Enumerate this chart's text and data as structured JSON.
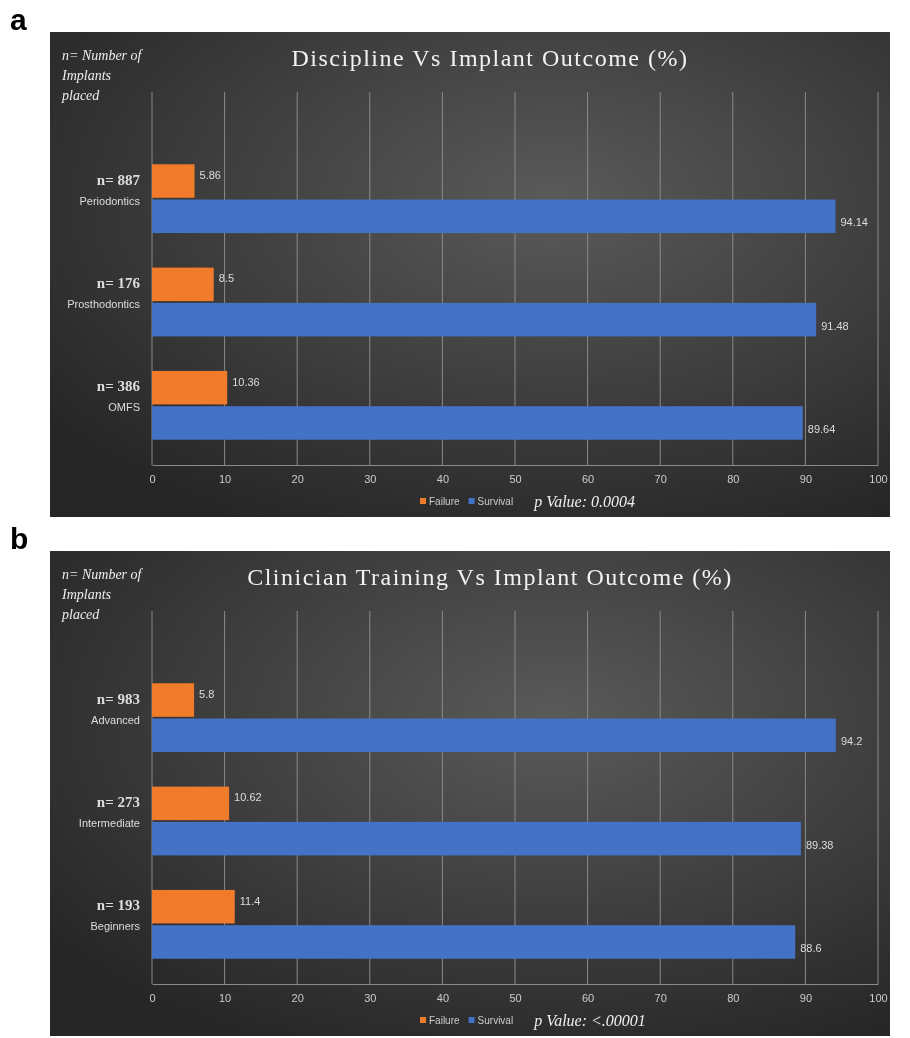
{
  "chart_data": [
    {
      "type": "bar",
      "orientation": "horizontal",
      "title": "Discipline Vs Implant Outcome (%)",
      "categories": [
        "n= 887\nPeriodontics",
        "n= 176\nProsthodontics",
        "n= 386\nOMFS"
      ],
      "series": [
        {
          "name": "Failure",
          "color": "#f07b2a",
          "values": [
            5.86,
            8.5,
            10.36
          ]
        },
        {
          "name": "Survival",
          "color": "#4472c4",
          "values": [
            94.14,
            91.48,
            89.64
          ]
        }
      ],
      "xlim": [
        0,
        100
      ],
      "xticks": [
        0,
        10,
        20,
        30,
        40,
        50,
        60,
        70,
        80,
        90,
        100
      ],
      "grid": "x",
      "legend": "bottom",
      "data_labels": true,
      "annotations": [
        "a",
        "n= Number of Implants placed",
        "p Value: 0.0004"
      ]
    },
    {
      "type": "bar",
      "orientation": "horizontal",
      "title": "Clinician Training Vs Implant Outcome (%)",
      "categories": [
        "n= 983\nAdvanced",
        "n= 273\nIntermediate",
        "n= 193\nBeginners"
      ],
      "series": [
        {
          "name": "Failure",
          "color": "#f07b2a",
          "values": [
            5.8,
            10.62,
            11.4
          ]
        },
        {
          "name": "Survival",
          "color": "#4472c4",
          "values": [
            94.2,
            89.38,
            88.6
          ]
        }
      ],
      "xlim": [
        0,
        100
      ],
      "xticks": [
        0,
        10,
        20,
        30,
        40,
        50,
        60,
        70,
        80,
        90,
        100
      ],
      "grid": "x",
      "legend": "bottom",
      "data_labels": true,
      "annotations": [
        "b",
        "n= Number of Implants placed",
        "p Value: <.00001"
      ]
    }
  ]
}
